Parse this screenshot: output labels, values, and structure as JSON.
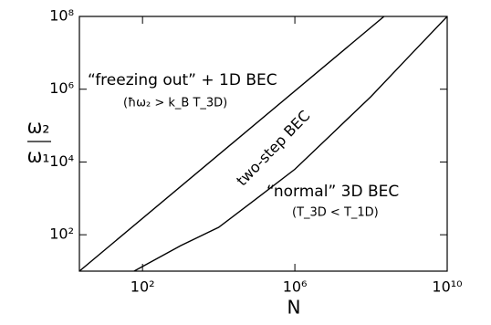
{
  "chart_data": {
    "type": "line",
    "xlabel": "N",
    "ylabel_numerator": "ω₂",
    "ylabel_denominator": "ω₁",
    "log_x": true,
    "log_y": true,
    "xlim": [
      2.2,
      10000000000
    ],
    "ylim": [
      10,
      100000000
    ],
    "xticks": [
      {
        "value": 100,
        "label": "10²"
      },
      {
        "value": 1000000,
        "label": "10⁶"
      },
      {
        "value": 10000000000,
        "label": "10¹⁰"
      }
    ],
    "yticks": [
      {
        "value": 100,
        "label": "10²"
      },
      {
        "value": 10000,
        "label": "10⁴"
      },
      {
        "value": 1000000,
        "label": "10⁶"
      },
      {
        "value": 100000000,
        "label": "10⁸"
      }
    ],
    "series": [
      {
        "color": "#000000",
        "x": [
          2.2,
          220000000
        ],
        "values": [
          10,
          100000000
        ]
      },
      {
        "color": "#000000",
        "x": [
          60,
          1000,
          10000,
          100000,
          1000000,
          10000000,
          100000000,
          1000000000,
          10000000000
        ],
        "values": [
          10,
          50,
          160,
          1000,
          6300,
          63000,
          630000,
          8000000,
          100000000
        ]
      }
    ],
    "annotations": [
      "“freezing out” + 1D BEC",
      "(ħω₂ > k_B T_3D)",
      "two-step BEC",
      "“normal” 3D BEC",
      "(T_3D < T_1D)"
    ]
  }
}
